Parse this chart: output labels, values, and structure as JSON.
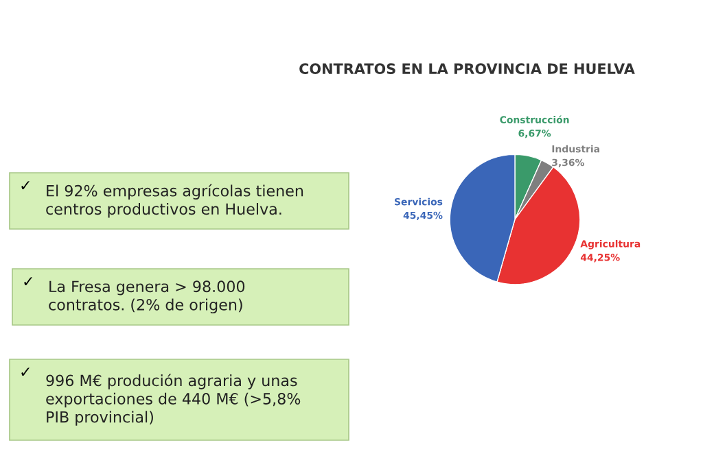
{
  "chart_data": {
    "type": "pie",
    "title": "CONTRATOS EN LA PROVINCIA DE HUELVA",
    "categories": [
      "Construcción",
      "Industria",
      "Agricultura",
      "Servicios"
    ],
    "values": [
      6.67,
      3.36,
      44.25,
      45.45
    ],
    "value_labels": [
      "6,67%",
      "3,36%",
      "44,25%",
      "45,45%"
    ],
    "colors": [
      "#3a9a6a",
      "#7f7f7f",
      "#e83232",
      "#3a66b8"
    ],
    "legend": false,
    "annotations": [
      "✓ El 92% empresas agrícolas tienen\ncentros productivos en Huelva.",
      "✓ La Fresa genera > 98.000\ncontratos. (2% de origen)",
      "✓ 996 M€ produción agraria y unas\nexportaciones de 440 M€ (>5,8%\nPIB provincial)"
    ]
  }
}
